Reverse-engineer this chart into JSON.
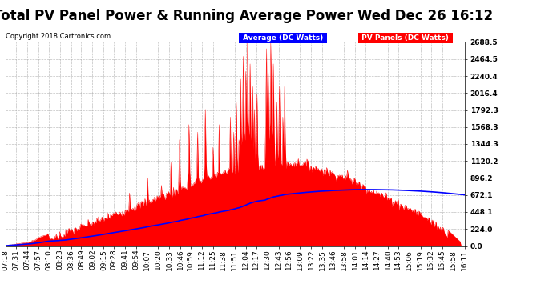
{
  "title": "Total PV Panel Power & Running Average Power Wed Dec 26 16:12",
  "copyright": "Copyright 2018 Cartronics.com",
  "legend_avg": "Average (DC Watts)",
  "legend_pv": "PV Panels (DC Watts)",
  "y_ticks": [
    0.0,
    224.0,
    448.1,
    672.1,
    896.2,
    1120.2,
    1344.3,
    1568.3,
    1792.3,
    2016.4,
    2240.4,
    2464.5,
    2688.5
  ],
  "ylim": [
    0,
    2688.5
  ],
  "background_color": "#ffffff",
  "plot_bg_color": "#ffffff",
  "grid_color": "#b0b0b0",
  "pv_color": "#ff0000",
  "avg_color": "#0000ff",
  "title_fontsize": 12,
  "tick_fontsize": 6.5,
  "time_labels": [
    "07:18",
    "07:31",
    "07:44",
    "07:57",
    "08:10",
    "08:23",
    "08:36",
    "08:49",
    "09:02",
    "09:15",
    "09:28",
    "09:41",
    "09:54",
    "10:07",
    "10:20",
    "10:33",
    "10:46",
    "10:59",
    "11:12",
    "11:25",
    "11:38",
    "11:51",
    "12:04",
    "12:17",
    "12:30",
    "12:43",
    "12:56",
    "13:09",
    "13:22",
    "13:35",
    "13:46",
    "13:58",
    "14:01",
    "14:14",
    "14:27",
    "14:40",
    "14:53",
    "15:06",
    "15:19",
    "15:32",
    "15:45",
    "15:58",
    "16:11"
  ]
}
